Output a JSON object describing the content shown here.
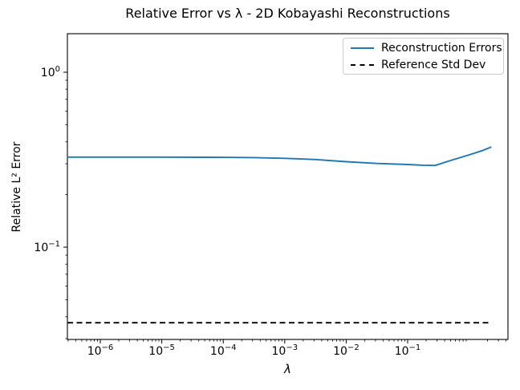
{
  "chart_data": {
    "type": "line",
    "title": "Relative Error vs λ - 2D Kobayashi Reconstructions",
    "xlabel": "λ",
    "ylabel": "Relative L² Error",
    "xscale": "log",
    "yscale": "log",
    "xlim": [
      2.92e-07,
      4.29
    ],
    "ylim": [
      0.0297,
      1.66
    ],
    "x_tick_exponents": [
      -6,
      -5,
      -4,
      -3,
      -2,
      -1
    ],
    "y_tick_exponents": [
      0,
      -1
    ],
    "grid": false,
    "legend_position": "upper right",
    "frame_color": "#000000",
    "series": [
      {
        "name": "Reconstruction Errors",
        "color": "#1f77b4",
        "line_style": "solid",
        "x": [
          2.92e-07,
          1e-06,
          1e-05,
          0.0001,
          0.00032,
          0.001,
          0.0032,
          0.01,
          0.032,
          0.1,
          0.18,
          0.28,
          0.5,
          1.0,
          1.7,
          2.3
        ],
        "y": [
          0.327,
          0.327,
          0.327,
          0.326,
          0.325,
          0.322,
          0.317,
          0.308,
          0.301,
          0.297,
          0.294,
          0.293,
          0.313,
          0.337,
          0.358,
          0.374
        ]
      },
      {
        "name": "Reference Std Dev",
        "color": "#000000",
        "line_style": "dashed",
        "x": [
          2.92e-07,
          2.3
        ],
        "y": [
          0.037,
          0.037
        ]
      }
    ]
  }
}
